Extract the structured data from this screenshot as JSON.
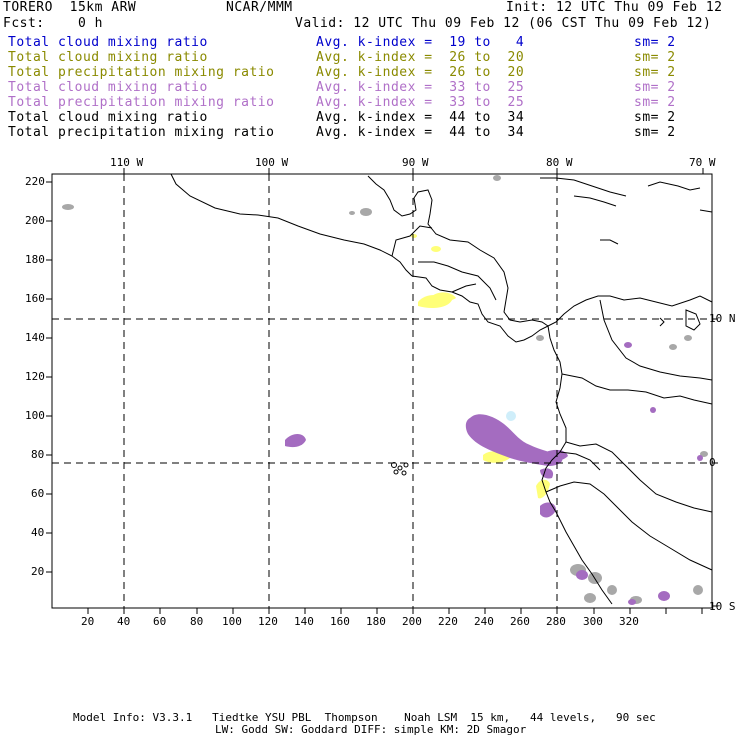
{
  "header": {
    "model": "TORERO  15km ARW",
    "org": "NCAR/MMM",
    "init": "Init: 12 UTC Thu 09 Feb 12",
    "fcst": "Fcst:    0 h",
    "valid": "Valid: 12 UTC Thu 09 Feb 12 (06 CST Thu 09 Feb 12)"
  },
  "legend": [
    {
      "label": "Total cloud mixing ratio",
      "kindex": "Avg. k-index =  19 to   4",
      "sm": "sm= 2",
      "color": "#0000cc"
    },
    {
      "label": "Total cloud mixing ratio",
      "kindex": "Avg. k-index =  26 to  20",
      "sm": "sm= 2",
      "color": "#8a8a00"
    },
    {
      "label": "Total precipitation mixing ratio",
      "kindex": "Avg. k-index =  26 to  20",
      "sm": "sm= 2",
      "color": "#8a8a00"
    },
    {
      "label": "Total cloud mixing ratio",
      "kindex": "Avg. k-index =  33 to  25",
      "sm": "sm= 2",
      "color": "#b070c8"
    },
    {
      "label": "Total precipitation mixing ratio",
      "kindex": "Avg. k-index =  33 to  25",
      "sm": "sm= 2",
      "color": "#b070c8"
    },
    {
      "label": "Total cloud mixing ratio",
      "kindex": "Avg. k-index =  44 to  34",
      "sm": "sm= 2",
      "color": "#000000"
    },
    {
      "label": "Total precipitation mixing ratio",
      "kindex": "Avg. k-index =  44 to  34",
      "sm": "sm= 2",
      "color": "#000000"
    }
  ],
  "top_axis": [
    "110 W",
    "100 W",
    "90 W",
    "80 W",
    "70 W"
  ],
  "right_axis": [
    "10 N",
    "0",
    "10 S"
  ],
  "left_ticks": [
    "220",
    "200",
    "180",
    "160",
    "140",
    "120",
    "100",
    "80",
    "60",
    "40",
    "20"
  ],
  "bottom_ticks": [
    "20",
    "40",
    "60",
    "80",
    "100",
    "120",
    "140",
    "160",
    "180",
    "200",
    "220",
    "240",
    "260",
    "280",
    "300",
    "320"
  ],
  "footer": {
    "line1": "Model Info: V3.3.1   Tiedtke YSU PBL  Thompson    Noah LSM  15 km,   44 levels,   90 sec",
    "line2": "LW: Godd SW: Goddard DIFF: simple KM: 2D Smagor"
  }
}
